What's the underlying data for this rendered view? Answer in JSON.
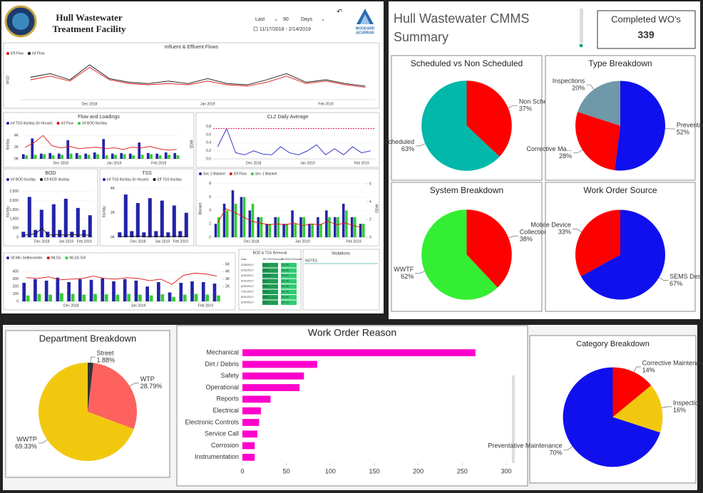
{
  "header": {
    "title": [
      "Hull Wastewater",
      "Treatment Facility"
    ],
    "filter": {
      "mode": "Last",
      "count": "90",
      "unit": "Days"
    },
    "date_range": "11/17/2018 - 2/14/2019",
    "logo": [
      "WOODARD",
      "&CURRAN"
    ]
  },
  "cmms": {
    "title": [
      "Hull Wastewater CMMS",
      "Summary"
    ],
    "card": {
      "label": "Completed WO's",
      "value": 339
    }
  },
  "tables": {
    "removal": {
      "title": "BOD & TSS Removal",
      "columns": [
        "Date",
        "Eff TSS Removal",
        "Eff BOD Removal"
      ],
      "rows": [
        [
          "2/28/2017",
          "99.2",
          "99.83"
        ],
        [
          "3/31/2017",
          "98.8",
          "98.45"
        ],
        [
          "4/30/2017",
          "98.42",
          "99.57"
        ],
        [
          "5/31/2017",
          "99.1",
          "99.08"
        ],
        [
          "6/30/2017",
          "98.0",
          "92.40"
        ],
        [
          "7/31/2017",
          "98.6",
          "96.93"
        ],
        [
          "8/31/2017",
          "98.5",
          "98.80"
        ],
        [
          "9/30/2017",
          "98.2",
          "94.14"
        ]
      ]
    },
    "violations": {
      "title": "Violations",
      "columns": [
        "NOTES"
      ]
    }
  },
  "chart_data": [
    {
      "type": "line",
      "title": "Influent & Effluent Flows",
      "ylabel": "MGD",
      "categories": [
        null,
        null,
        null,
        "Dec 2018",
        null,
        null,
        null,
        null,
        null,
        "Jan 2019",
        null,
        null,
        null,
        null,
        null,
        "Feb 2019",
        null,
        null
      ],
      "series": [
        {
          "name": "Eff Flow",
          "color": "#e01010",
          "kind": "line",
          "values": [
            1.6,
            1.9,
            1.5,
            2.6,
            1.6,
            1.3,
            1.2,
            1.3,
            1.2,
            1.5,
            1.2,
            1.1,
            1.4,
            1.9,
            1.3,
            1.5,
            1.2,
            1.0
          ]
        },
        {
          "name": "Inf Flow",
          "color": "#111111",
          "kind": "line",
          "values": [
            1.8,
            2.1,
            1.6,
            2.8,
            1.7,
            1.4,
            1.3,
            1.5,
            1.3,
            1.7,
            1.3,
            1.2,
            1.6,
            2.1,
            1.4,
            1.6,
            1.3,
            1.1
          ]
        }
      ],
      "ylim": [
        0,
        3.2
      ]
    },
    {
      "type": "combo",
      "title": "Flow and Loadings",
      "ylabel": "lbs/day",
      "y2label": "MGD",
      "categories": [
        null,
        null,
        null,
        null,
        "Dec 2018",
        null,
        null,
        null,
        null,
        null,
        "Jan 2019",
        null,
        null,
        null,
        null,
        "Feb 2019",
        null,
        null
      ],
      "series": [
        {
          "name": "Inf TSS lbs/day (In House)",
          "color": "#2323a8",
          "kind": "bar",
          "values": [
            800,
            3500,
            900,
            1000,
            900,
            3200,
            1000,
            900,
            1100,
            3400,
            900,
            1000,
            900,
            2800,
            1000,
            900,
            1100,
            1000
          ]
        },
        {
          "name": "Inf Flow",
          "color": "#e01010",
          "kind": "line",
          "axis": "y2",
          "values": [
            1.6,
            2.2,
            3.2,
            1.8,
            1.5,
            1.7,
            1.4,
            1.5,
            1.6,
            1.4,
            1.5,
            1.3,
            1.6,
            1.5,
            1.7,
            1.4,
            1.2,
            1.3
          ]
        },
        {
          "name": "Inf BOD lbs/day",
          "color": "#33cc33",
          "kind": "bar",
          "values": [
            600,
            700,
            800,
            600,
            700,
            900,
            600,
            700,
            800,
            600,
            700,
            800,
            600,
            700,
            800,
            600,
            700,
            600
          ]
        }
      ],
      "ylim": [
        0,
        5000
      ],
      "yticks": [
        {
          "value": 0,
          "label": "0K"
        },
        {
          "value": 2000,
          "label": "2K"
        },
        {
          "value": 4000,
          "label": "4K"
        }
      ],
      "y2lim": [
        0,
        4
      ]
    },
    {
      "type": "combo",
      "title": "CL2 Daily Average",
      "categories": [
        null,
        null,
        null,
        null,
        "Dec 2018",
        null,
        null,
        null,
        null,
        null,
        "Jan 2019",
        null,
        null,
        null,
        null,
        null,
        "Feb 2019",
        null
      ],
      "series": [
        {
          "color": "#2323c8",
          "kind": "line",
          "values": [
            0.3,
            0.75,
            0.15,
            0.1,
            0.2,
            0.12,
            0.1,
            0.3,
            0.15,
            0.1,
            0.2,
            0.35,
            0.1,
            0.25,
            0.1,
            0.3,
            0.15,
            0.2
          ]
        }
      ],
      "threshold": {
        "value": 0.75,
        "color": "#e0105a"
      },
      "ylim": [
        0,
        0.9
      ],
      "yticks": [
        {
          "value": 0,
          "label": "0.0"
        },
        0.2,
        0.4,
        0.6,
        0.8
      ]
    },
    {
      "type": "combo",
      "title": "BOD",
      "ylabel": "lbs/day",
      "categories": [
        null,
        null,
        null,
        "Dec 2018",
        null,
        null,
        null,
        "Jan 2019",
        null,
        null,
        "Feb 2019",
        null
      ],
      "series": [
        {
          "name": "Inf BOD lbs/day",
          "color": "#2323a8",
          "kind": "bar",
          "values": [
            300,
            2200,
            400,
            1500,
            300,
            1800,
            400,
            2100,
            300,
            1600,
            400,
            1200
          ]
        },
        {
          "name": "Eff BOD lbs/day",
          "color": "#111111",
          "kind": "line",
          "values": [
            100,
            150,
            200,
            500,
            120,
            130,
            140,
            110,
            150,
            120,
            130,
            110
          ]
        }
      ],
      "ylim": [
        0,
        2800
      ],
      "yticks": [
        0,
        500,
        {
          "value": 1000,
          "label": "1,000"
        },
        {
          "value": 1500,
          "label": "1,500"
        },
        {
          "value": 2000,
          "label": "2,000"
        },
        {
          "value": 2500,
          "label": "2,500"
        }
      ]
    },
    {
      "type": "combo",
      "title": "TSS",
      "ylabel": "lbs/day",
      "categories": [
        null,
        null,
        null,
        "Dec 2018",
        null,
        null,
        null,
        "Jan 2019",
        null,
        null,
        "Feb 2019",
        null
      ],
      "series": [
        {
          "name": "Inf TSS lbs/day (In House)",
          "color": "#2323a8",
          "kind": "bar",
          "values": [
            400,
            3500,
            500,
            2800,
            400,
            3200,
            500,
            3000,
            400,
            2600,
            500,
            2000
          ]
        },
        {
          "name": "Eff TSS lbs/day",
          "color": "#111111",
          "kind": "line",
          "values": [
            50,
            80,
            60,
            100,
            60,
            50,
            70,
            60,
            50,
            80,
            60,
            50
          ]
        }
      ],
      "ylim": [
        0,
        4200
      ],
      "yticks": [
        {
          "value": 0,
          "label": "0K"
        },
        {
          "value": 2000,
          "label": "2K"
        },
        {
          "value": 4000,
          "label": "4K"
        }
      ]
    },
    {
      "type": "combo",
      "ylabel": "Blanket",
      "y2label": "MGD",
      "categories": [
        null,
        null,
        null,
        null,
        "Dec 2018",
        null,
        null,
        null,
        null,
        null,
        "Jan 2019",
        null,
        null,
        null,
        null,
        null,
        "Feb 2019",
        null
      ],
      "series": [
        {
          "name": "Sec 2 Blanket",
          "color": "#2323a8",
          "kind": "bar",
          "values": [
            2,
            5,
            7,
            6,
            4,
            3,
            2,
            3,
            2,
            4,
            3,
            2,
            3,
            4,
            3,
            5,
            3,
            2
          ]
        },
        {
          "name": "Eff Flow",
          "color": "#e01010",
          "kind": "line",
          "axis": "y2",
          "values": [
            1.6,
            3.2,
            2.8,
            2.3,
            1.8,
            1.6,
            1.4,
            1.5,
            1.4,
            1.6,
            1.3,
            1.5,
            1.4,
            1.8,
            1.4,
            1.6,
            1.3,
            1.1
          ]
        },
        {
          "name": "Sec 1 Blanket",
          "color": "#33cc33",
          "kind": "bar",
          "values": [
            3,
            4,
            5,
            6,
            5,
            3,
            2,
            3,
            2,
            2,
            3,
            2,
            2,
            3,
            3,
            4,
            3,
            2
          ]
        }
      ],
      "ylim": [
        0,
        8.5
      ],
      "yticks": [
        0,
        2,
        4,
        6,
        8
      ],
      "y2lim": [
        0,
        6.4
      ],
      "y2ticks": [
        0,
        2,
        4,
        6
      ]
    },
    {
      "type": "combo",
      "categories": [
        null,
        null,
        null,
        null,
        "Dec 2018",
        null,
        null,
        null,
        null,
        null,
        "Jan 2019",
        null,
        null,
        null,
        null,
        null,
        "Feb 2019",
        null
      ],
      "series": [
        {
          "name": "30 Min Settleometer",
          "color": "#2323a8",
          "kind": "bar",
          "values": [
            250,
            300,
            280,
            320,
            260,
            300,
            290,
            310,
            270,
            300,
            280,
            200,
            260,
            120,
            250,
            270,
            260,
            240
          ]
        },
        {
          "name": "MLSS",
          "color": "#e01010",
          "kind": "line",
          "axis": "y2",
          "values": [
            3200,
            3100,
            3300,
            2900,
            3000,
            3100,
            3400,
            3100,
            3000,
            3200,
            3100,
            2800,
            3000,
            2300,
            3500,
            3800,
            3700,
            3400
          ]
        },
        {
          "name": "MLSS SVI",
          "color": "#33cc33",
          "kind": "bar",
          "values": [
            80,
            100,
            90,
            110,
            100,
            90,
            100,
            95,
            90,
            100,
            90,
            80,
            95,
            60,
            90,
            100,
            90,
            80
          ]
        }
      ],
      "ylim": [
        0,
        500
      ],
      "yticks": [
        0,
        100,
        200,
        300,
        400
      ],
      "y2lim": [
        0,
        5000
      ],
      "y2ticks": [
        {
          "value": 2000,
          "label": "2K"
        },
        {
          "value": 3000,
          "label": "3K"
        },
        {
          "value": 4000,
          "label": "4K"
        },
        {
          "value": 5000,
          "label": "5K"
        }
      ]
    },
    {
      "type": "pie",
      "title": "Scheduled vs Non Scheduled",
      "categories": [
        "Non Schedul...",
        "Scheduled"
      ],
      "values": [
        37,
        63
      ],
      "value_labels": [
        "37%",
        "63%"
      ],
      "colors": [
        "#fd0000",
        "#01b8aa"
      ]
    },
    {
      "type": "pie",
      "title": "Type Breakdown",
      "categories": [
        "Preventativ...",
        "Corrective Ma...",
        "Inspections"
      ],
      "values": [
        52,
        28,
        20
      ],
      "value_labels": [
        "52%",
        "28%",
        "20%"
      ],
      "colors": [
        "#1010ee",
        "#fd0000",
        "#6f98a8"
      ]
    },
    {
      "type": "pie",
      "title": "System Breakdown",
      "categories": [
        "Collection Sy...",
        "WWTF"
      ],
      "values": [
        38,
        62
      ],
      "value_labels": [
        "38%",
        "62%"
      ],
      "colors": [
        "#fd0000",
        "#33ee33"
      ]
    },
    {
      "type": "pie",
      "title": "Work Order Source",
      "categories": [
        "SEMS Desktop",
        "Mobile Device"
      ],
      "values": [
        67,
        33
      ],
      "value_labels": [
        "67%",
        "33%"
      ],
      "colors": [
        "#1010ee",
        "#fd0000"
      ]
    },
    {
      "type": "pie",
      "title": "Department Breakdown",
      "categories": [
        "Street",
        "WTP",
        "WWTP"
      ],
      "values": [
        1.88,
        28.79,
        69.33
      ],
      "value_labels": [
        "1.88%",
        "28.79%",
        "69.33%"
      ],
      "colors": [
        "#333333",
        "#fd625e",
        "#f2c80f"
      ]
    },
    {
      "type": "bar",
      "orientation": "horizontal",
      "title": "Work Order Reason",
      "categories": [
        "Mechanical",
        "Dirt / Debris",
        "Safety",
        "Operational",
        "Reports",
        "Electrical",
        "Electronic Controls",
        "Service Call",
        "Corrosion",
        "Instrumentation"
      ],
      "values": [
        265,
        85,
        70,
        65,
        32,
        21,
        19,
        17,
        14,
        14
      ],
      "color": "#ff00cc",
      "xlim": [
        0,
        300
      ],
      "xticks": [
        0,
        50,
        100,
        150,
        200,
        250,
        300
      ]
    },
    {
      "type": "pie",
      "title": "Category Breakdown",
      "categories": [
        "Corrective Maintenance",
        "Inspections",
        "Preventative Maintenance"
      ],
      "values": [
        14,
        16,
        70
      ],
      "value_labels": [
        "14%",
        "16%",
        "70%"
      ],
      "colors": [
        "#fd0000",
        "#f2c80f",
        "#1010ee"
      ]
    }
  ]
}
